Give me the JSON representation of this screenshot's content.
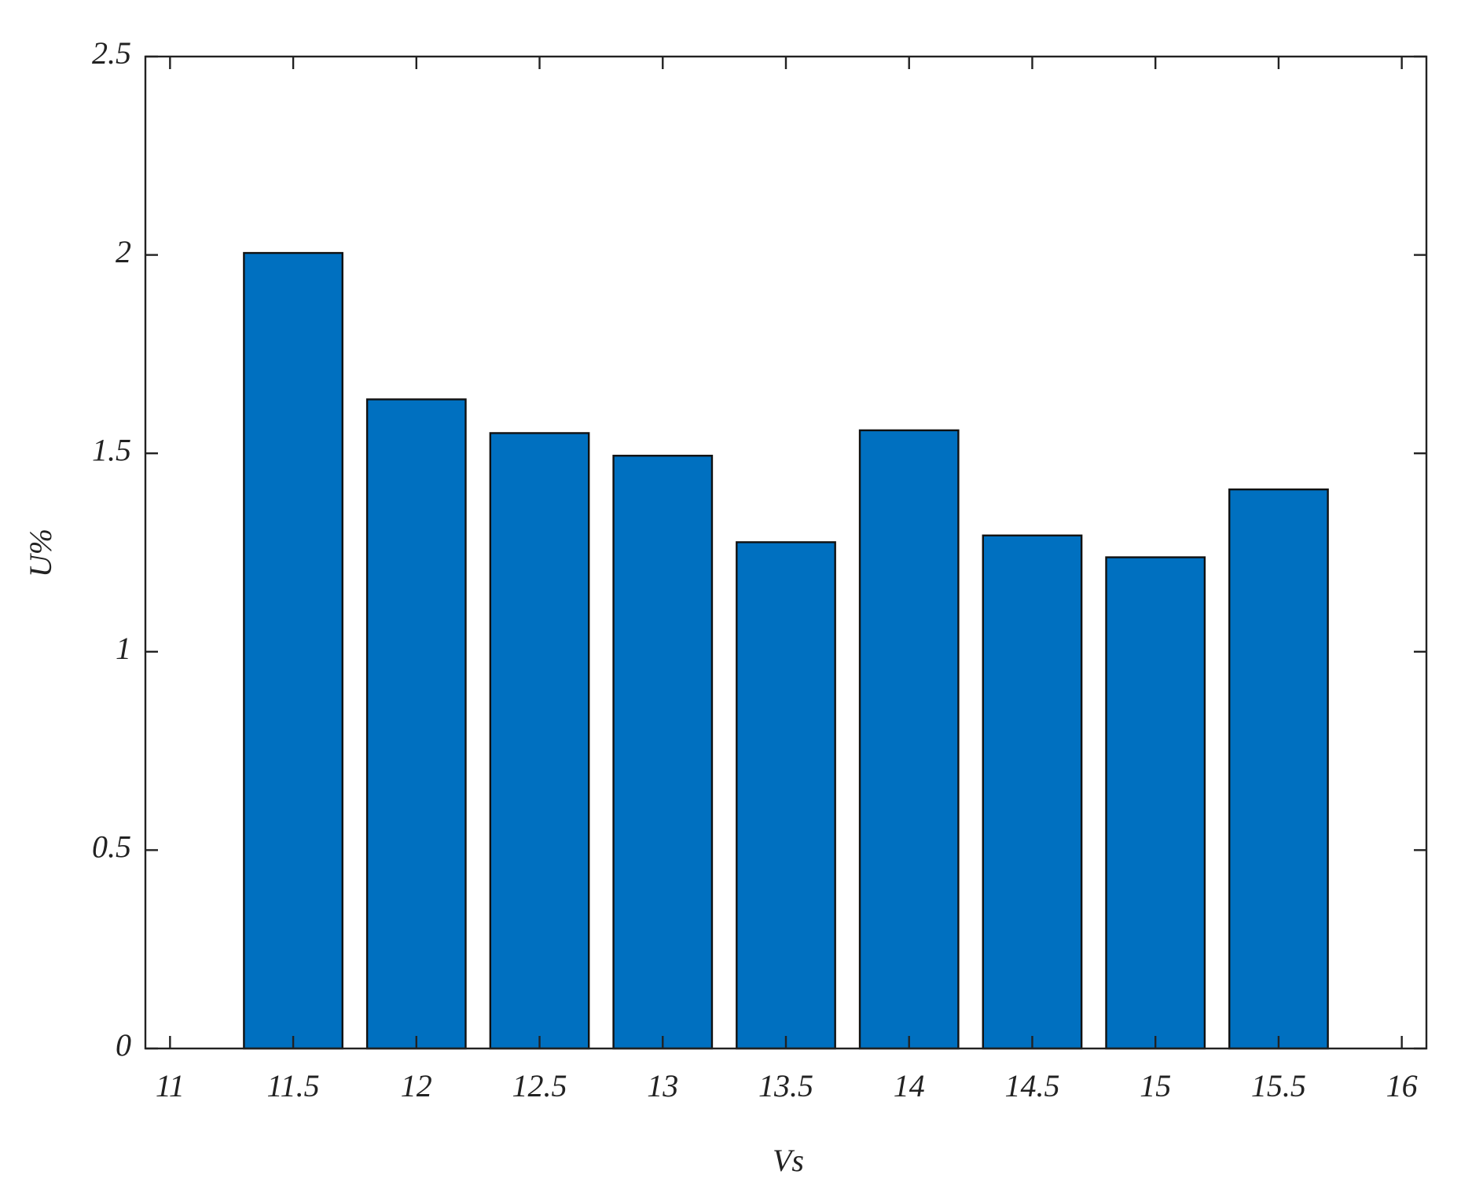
{
  "chart_data": {
    "type": "bar",
    "x_label": "Vs",
    "y_label": "U%",
    "x": [
      11.5,
      12,
      12.5,
      13,
      13.5,
      14,
      14.5,
      15,
      15.5
    ],
    "values": [
      2.005,
      1.636,
      1.551,
      1.494,
      1.276,
      1.558,
      1.293,
      1.238,
      1.409
    ],
    "color": "#0070c0",
    "xlim": [
      10.9,
      16.1
    ],
    "xticks": [
      11,
      11.5,
      12,
      12.5,
      13,
      13.5,
      14,
      14.5,
      15,
      15.5,
      16
    ],
    "ylim": [
      0,
      2.5
    ],
    "yticks": [
      0,
      0.5,
      1,
      1.5,
      2,
      2.5
    ],
    "grid": false
  }
}
